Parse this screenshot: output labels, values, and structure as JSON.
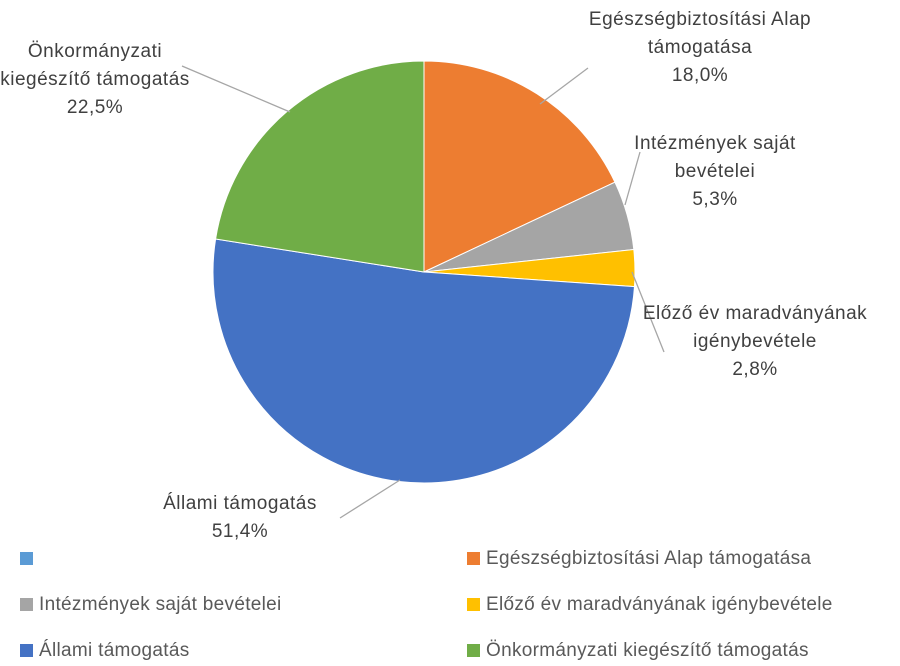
{
  "chart_data": {
    "type": "pie",
    "categories": [
      null,
      "Egészségbiztosítási Alap támogatása",
      "Intézmények saját bevételei",
      "Előző év maradványának igénybevétele",
      "Állami támogatás",
      "Önkormányzati kiegészítő támogatás"
    ],
    "values": [
      null,
      18.0,
      5.3,
      2.8,
      51.4,
      22.5
    ],
    "value_labels": [
      null,
      "18,0%",
      "5,3%",
      "2,8%",
      "51,4%",
      "22,5%"
    ],
    "colors": [
      "#5b9bd5",
      "#ed7d31",
      "#a5a5a5",
      "#ffc000",
      "#4472c4",
      "#70ad47"
    ],
    "legend": "bottom"
  }
}
